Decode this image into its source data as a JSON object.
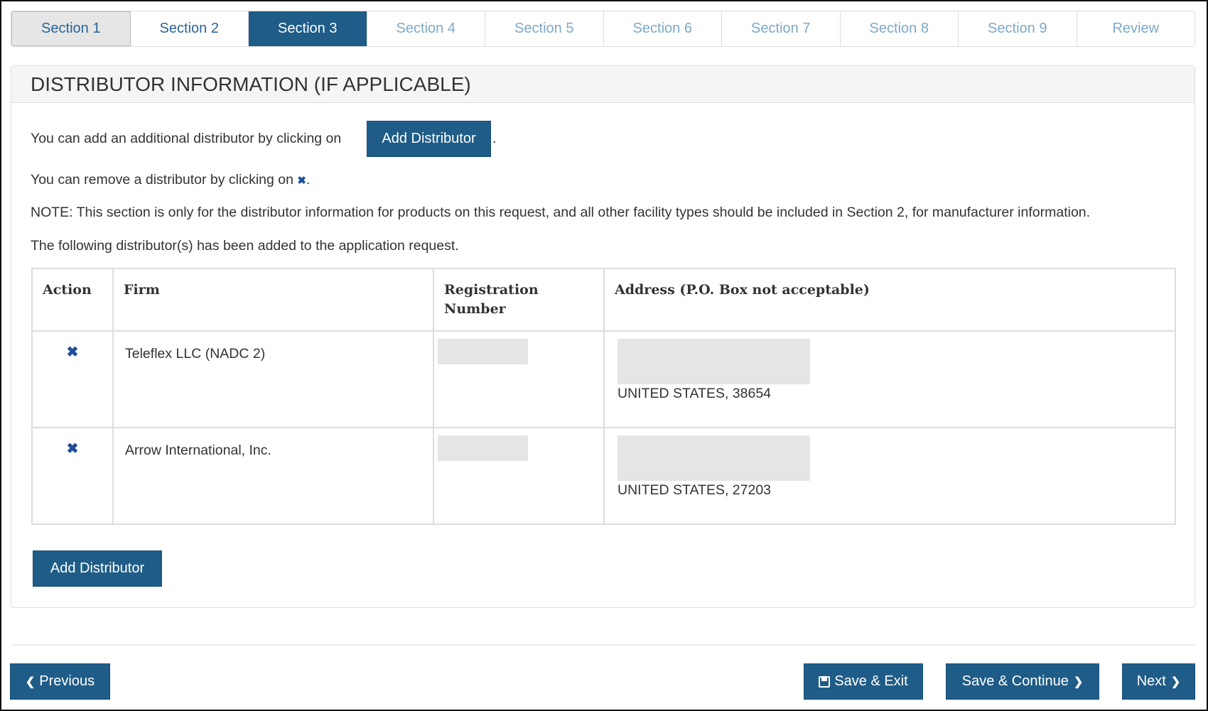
{
  "tabs": [
    "Section 1",
    "Section 2",
    "Section 3",
    "Section 4",
    "Section 5",
    "Section 6",
    "Section 7",
    "Section 8",
    "Section 9",
    "Review"
  ],
  "panel": {
    "title": "DISTRIBUTOR INFORMATION (IF APPLICABLE)",
    "add_text": "You can add an additional distributor by clicking on",
    "add_button": "Add Distributor",
    "period": ".",
    "remove_text": "You can remove a distributor by clicking on",
    "remove_icon": "✖",
    "note": "NOTE: This section is only for the distributor information for products on this request, and all other facility types should be included in Section 2, for manufacturer information.",
    "added_text": "The following distributor(s) has been added to the application request."
  },
  "table": {
    "headers": [
      "Action",
      "Firm",
      "Registration Number",
      "Address (P.O. Box not acceptable)"
    ],
    "rows": [
      {
        "firm": "Teleflex LLC (NADC 2)",
        "address": "UNITED STATES, 38654"
      },
      {
        "firm": "Arrow International, Inc.",
        "address": "UNITED STATES, 27203"
      }
    ]
  },
  "add_button_bottom": "Add Distributor",
  "footer": {
    "previous": "Previous",
    "save_exit": "Save & Exit",
    "save_continue": "Save & Continue",
    "next": "Next",
    "chevron_left": "❮",
    "chevron_right": "❯",
    "save_icon": "🖫"
  },
  "colors": {
    "primary": "#1f5c87"
  }
}
